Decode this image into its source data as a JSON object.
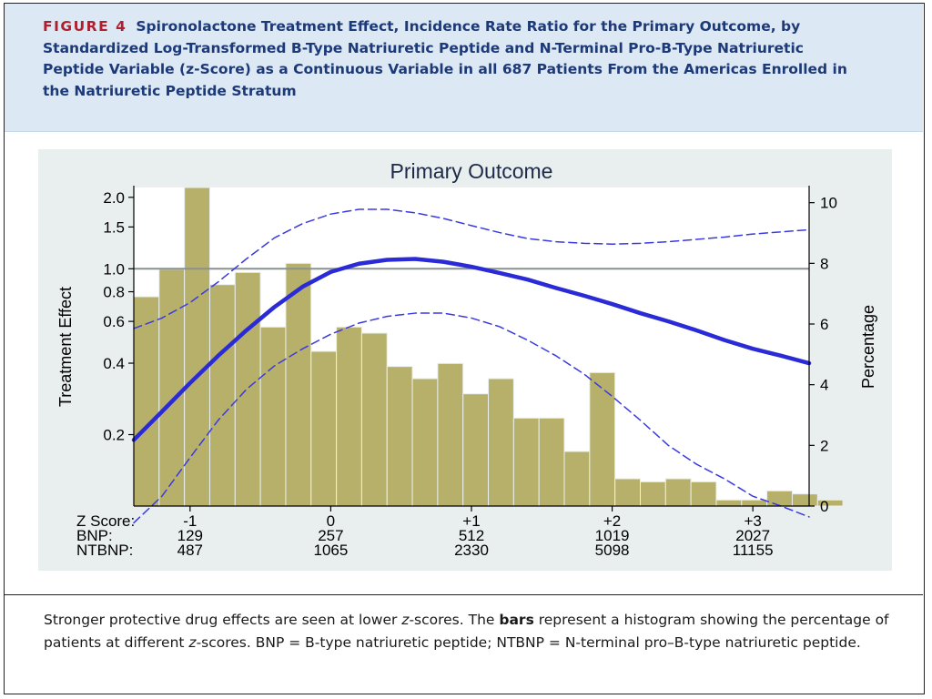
{
  "figure": {
    "label": "FIGURE 4",
    "title": "Spironolactone Treatment Effect, Incidence Rate Ratio for the Primary Outcome, by Standardized Log-Transformed B-Type Natriuretic Peptide and N-Terminal Pro-B-Type Natriuretic Peptide Variable (z-Score) as a Continuous Variable in all 687 Patients From the Americas Enrolled in the Natriuretic Peptide Stratum"
  },
  "caption": {
    "part1": "Stronger protective drug effects are seen at lower ",
    "z1": "z",
    "part2": "-scores. The ",
    "bold": "bars",
    "part3": " represent a histogram showing the percentage of patients at different ",
    "z2": "z",
    "part4": "-scores. BNP = B-type natriuretic peptide; NTBNP = N-terminal pro–B-type natriuretic peptide."
  },
  "chart_data": {
    "type": "line",
    "title": "Primary Outcome",
    "ylabel": "Treatment Effect",
    "y2label": "Percentage",
    "yscale": "log",
    "ylim": [
      0.1,
      2.2
    ],
    "yticks": [
      0.2,
      0.4,
      0.6,
      0.8,
      1.0,
      1.5,
      2.0
    ],
    "ytick_labels": [
      "0.2",
      "0.4",
      "0.6",
      "0.8",
      "1.0",
      "1.5",
      "2.0"
    ],
    "y2lim": [
      0,
      10.5
    ],
    "y2ticks": [
      0,
      2,
      4,
      6,
      8,
      10
    ],
    "xlim": [
      -1.4,
      3.4
    ],
    "reference_line": 1.0,
    "x_axis_rows": {
      "labels": [
        "Z Score:",
        "BNP:",
        "NTBNP:"
      ],
      "z": [
        "-1",
        "0",
        "+1",
        "+2",
        "+3"
      ],
      "z_values": [
        -1,
        0,
        1,
        2,
        3
      ],
      "bnp": [
        "129",
        "257",
        "512",
        "1019",
        "2027"
      ],
      "ntbnp": [
        "487",
        "1065",
        "2330",
        "5098",
        "11155"
      ]
    },
    "histogram": {
      "name": "Percentage of patients",
      "bin_start": -1.4,
      "bin_width": 0.18,
      "percentages": [
        6.9,
        7.8,
        10.5,
        7.3,
        7.7,
        5.9,
        8.0,
        5.1,
        5.9,
        5.7,
        4.6,
        4.2,
        4.7,
        3.7,
        4.2,
        2.9,
        2.9,
        1.8,
        4.4,
        0.9,
        0.8,
        0.9,
        0.8,
        0.2,
        0.2,
        0.5,
        0.4,
        0.2
      ]
    },
    "series": [
      {
        "name": "Treatment effect",
        "style": "solid",
        "x": [
          -1.4,
          -1.2,
          -1.0,
          -0.8,
          -0.6,
          -0.4,
          -0.2,
          0.0,
          0.2,
          0.4,
          0.6,
          0.8,
          1.0,
          1.2,
          1.4,
          1.6,
          1.8,
          2.0,
          2.2,
          2.4,
          2.6,
          2.8,
          3.0,
          3.2,
          3.4
        ],
        "values": [
          0.19,
          0.25,
          0.33,
          0.43,
          0.55,
          0.69,
          0.84,
          0.97,
          1.05,
          1.09,
          1.1,
          1.07,
          1.02,
          0.96,
          0.9,
          0.83,
          0.77,
          0.71,
          0.65,
          0.6,
          0.55,
          0.5,
          0.46,
          0.43,
          0.4
        ]
      },
      {
        "name": "Upper confidence limit",
        "style": "dashed",
        "x": [
          -1.4,
          -1.2,
          -1.0,
          -0.8,
          -0.6,
          -0.4,
          -0.2,
          0.0,
          0.2,
          0.4,
          0.6,
          0.8,
          1.0,
          1.2,
          1.4,
          1.6,
          1.8,
          2.0,
          2.2,
          2.4,
          2.6,
          2.8,
          3.0,
          3.2,
          3.4
        ],
        "values": [
          0.56,
          0.62,
          0.72,
          0.88,
          1.1,
          1.35,
          1.55,
          1.7,
          1.78,
          1.78,
          1.72,
          1.63,
          1.52,
          1.42,
          1.34,
          1.3,
          1.28,
          1.27,
          1.28,
          1.3,
          1.33,
          1.36,
          1.4,
          1.43,
          1.46
        ]
      },
      {
        "name": "Lower confidence limit",
        "style": "dashed",
        "x": [
          -1.4,
          -1.2,
          -1.0,
          -0.8,
          -0.6,
          -0.4,
          -0.2,
          0.0,
          0.2,
          0.4,
          0.6,
          0.8,
          1.0,
          1.2,
          1.4,
          1.6,
          1.8,
          2.0,
          2.2,
          2.4,
          2.6,
          2.8,
          3.0,
          3.2,
          3.4
        ],
        "values": [
          0.085,
          0.11,
          0.16,
          0.23,
          0.31,
          0.39,
          0.46,
          0.53,
          0.59,
          0.63,
          0.65,
          0.65,
          0.62,
          0.57,
          0.5,
          0.43,
          0.36,
          0.29,
          0.23,
          0.18,
          0.15,
          0.13,
          0.11,
          0.1,
          0.09
        ]
      }
    ],
    "colors": {
      "bars": "#b7b06a",
      "bar_edge": "#e9efee",
      "line": "#2a2ad6",
      "ci": "#3a3ae0",
      "reference": "#8a9290",
      "axis": "#000000"
    }
  }
}
